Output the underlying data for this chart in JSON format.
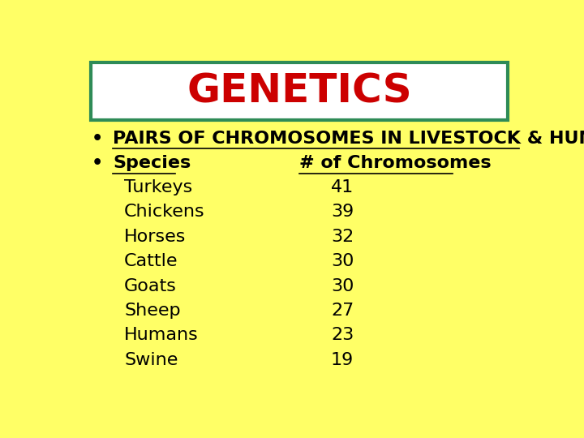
{
  "title": "GENETICS",
  "title_color": "#cc0000",
  "title_fontsize": 36,
  "background_color": "#ffff66",
  "header_box_bg": "#ffffff",
  "header_box_border": "#2e8b57",
  "bullet1": "PAIRS OF CHROMOSOMES IN LIVESTOCK & HUMANS:",
  "bullet2_col1": "Species",
  "bullet2_col2": "# of Chromosomes",
  "species": [
    "Turkeys",
    "Chickens",
    "Horses",
    "Cattle",
    "Goats",
    "Sheep",
    "Humans",
    "Swine"
  ],
  "chromosomes": [
    41,
    39,
    32,
    30,
    30,
    27,
    23,
    19
  ],
  "text_color": "#000000",
  "body_fontsize": 16,
  "bullet_fontsize": 16
}
